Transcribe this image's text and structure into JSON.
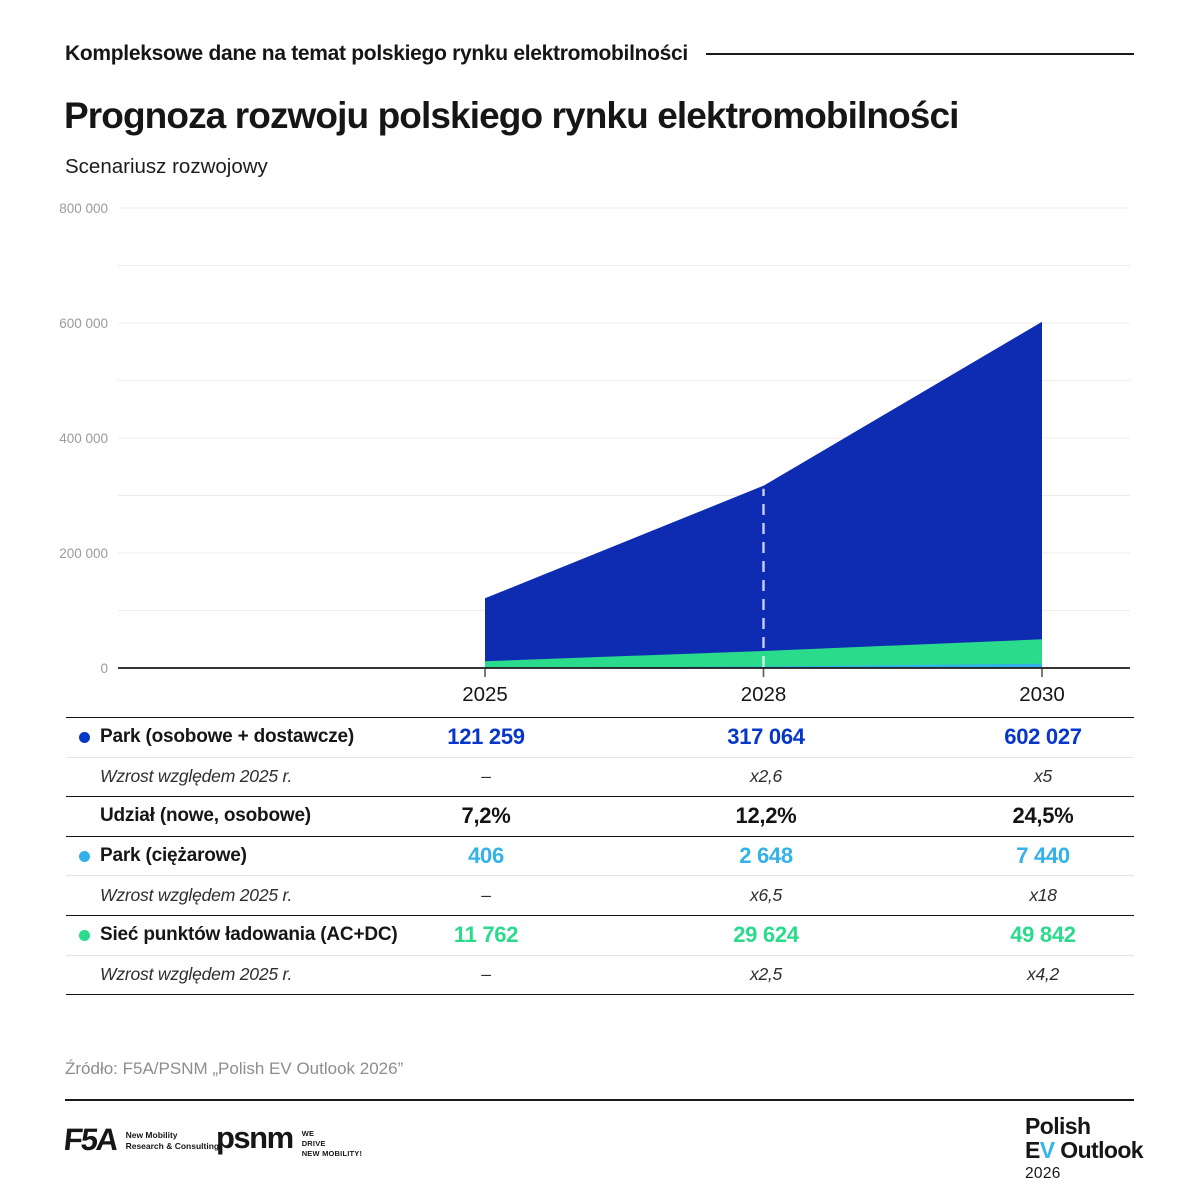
{
  "header": {
    "kicker": "Kompleksowe dane na temat polskiego rynku elektromobilności",
    "title": "Prognoza rozwoju polskiego rynku elektromobilności",
    "subtitle": "Scenariusz rozwojowy"
  },
  "colors": {
    "park_blue_area": "#0d2cb2",
    "park_blue_text": "#0637c9",
    "trucks_cyan": "#33b1e9",
    "chargers_green": "#2bdb8c",
    "grid": "#ececec",
    "axis": "#1a1a1a",
    "tick": "#5a5a5a",
    "muted": "#9b9b9b",
    "dashed_marker": "rgba(255,255,255,0.78)"
  },
  "chart_data": {
    "type": "area",
    "x": [
      2025,
      2028,
      2030
    ],
    "x_tick_labels": [
      "2025",
      "2028",
      "2030"
    ],
    "series": [
      {
        "name": "Park (osobowe + dostawcze)",
        "values": [
          121259,
          317064,
          602027
        ],
        "color": "#0d2cb2"
      },
      {
        "name": "Sieć punktów ładowania (AC+DC)",
        "values": [
          11762,
          29624,
          49842
        ],
        "color": "#2bdb8c"
      },
      {
        "name": "Park (ciężarowe)",
        "values": [
          406,
          2648,
          7440
        ],
        "color": "#33b1e9"
      }
    ],
    "ylim": [
      0,
      800000
    ],
    "y_tick_labels": [
      "0",
      "200 000",
      "400 000",
      "600 000",
      "800 000"
    ],
    "grid_step": 100000,
    "grid_on": true,
    "dashed_marker_x": 2028,
    "legend_position": "table-below",
    "title": "Prognoza rozwoju polskiego rynku elektromobilności",
    "xlabel": "",
    "ylabel": ""
  },
  "table": {
    "rows": [
      {
        "label": "Park (osobowe + dostawcze)",
        "dot": "#0637c9",
        "style": "metric",
        "color": "#0637c9",
        "values": [
          "121 259",
          "317 064",
          "602 027"
        ],
        "sep_below": false
      },
      {
        "label": "Wzrost względem 2025 r.",
        "style": "growth",
        "values": [
          "–",
          "x2,6",
          "x5"
        ],
        "sep_below": true
      },
      {
        "label": "Udział (nowe, osobowe)",
        "style": "share",
        "values": [
          "7,2%",
          "12,2%",
          "24,5%"
        ],
        "sep_below": true
      },
      {
        "label": "Park (ciężarowe)",
        "dot": "#33b1e9",
        "style": "metric",
        "color": "#33b1e9",
        "values": [
          "406",
          "2 648",
          "7 440"
        ],
        "sep_below": false
      },
      {
        "label": "Wzrost względem 2025 r.",
        "style": "growth",
        "values": [
          "–",
          "x6,5",
          "x18"
        ],
        "sep_below": true
      },
      {
        "label": "Sieć punktów ładowania (AC+DC)",
        "dot": "#2bdb8c",
        "style": "metric",
        "color": "#2bdb8c",
        "values": [
          "11 762",
          "29 624",
          "49 842"
        ],
        "sep_below": false
      },
      {
        "label": "Wzrost względem 2025 r.",
        "style": "growth",
        "values": [
          "–",
          "x2,5",
          "x4,2"
        ],
        "sep_below": true
      }
    ]
  },
  "source": "Źródło: F5A/PSNM „Polish EV Outlook 2026”",
  "footer": {
    "f5a": {
      "name": "F5A",
      "tagline_1": "New Mobility",
      "tagline_2": "Research & Consulting"
    },
    "psnm": {
      "name": "psnm",
      "tagline_1": "WE",
      "tagline_2": "DRIVE",
      "tagline_3": "NEW MOBILITY!"
    },
    "outlook": {
      "line1": "Polish",
      "line2_e": "E",
      "line2_v": "V",
      "line2_rest": " Outlook",
      "line3": "2026"
    }
  }
}
